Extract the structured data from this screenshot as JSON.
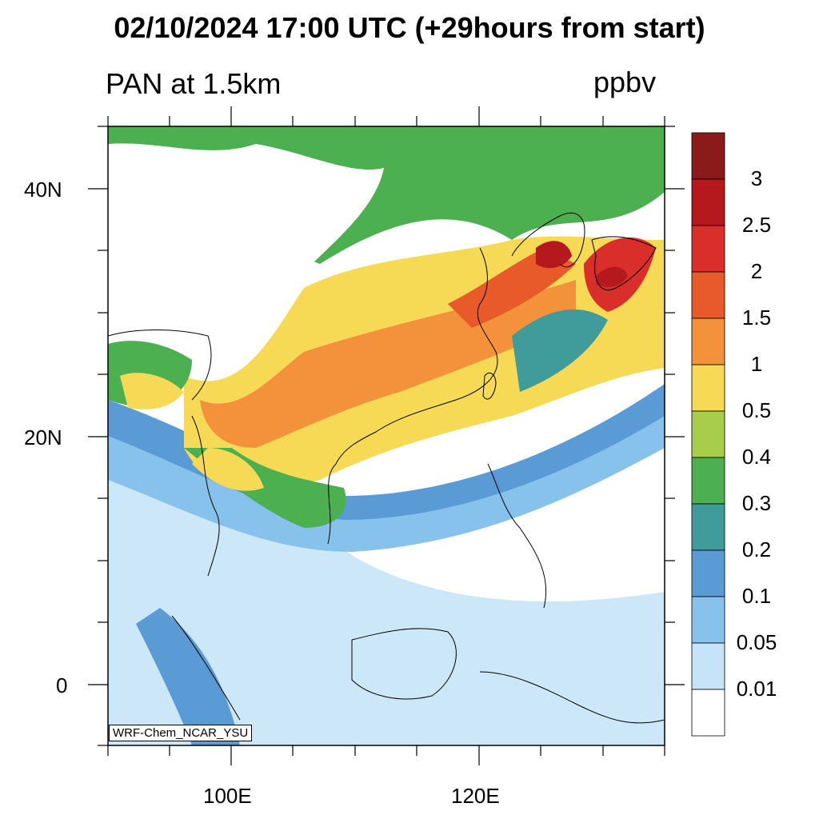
{
  "header": {
    "title": "02/10/2024 17:00 UTC (+29hours from start)",
    "variable": "PAN at 1.5km",
    "units": "ppbv"
  },
  "map": {
    "lat_labels": [
      "40N",
      "20N",
      "0"
    ],
    "lon_labels": [
      "100E",
      "120E"
    ],
    "model_label": "WRF-Chem_NCAR_YSU"
  },
  "colorbar": {
    "labels": [
      "3",
      "2.5",
      "2",
      "1.5",
      "1",
      "0.5",
      "0.4",
      "0.3",
      "0.2",
      "0.1",
      "0.05",
      "0.01"
    ],
    "colors_top_to_bottom": [
      "#8b1a1a",
      "#b5191d",
      "#d92e2a",
      "#e85a2a",
      "#f4923c",
      "#f6d955",
      "#a8cd4a",
      "#4caf50",
      "#3f9c9a",
      "#5b9bd5",
      "#86c2ec",
      "#c6e4f7",
      "#ffffff"
    ]
  }
}
